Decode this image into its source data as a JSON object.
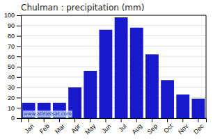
{
  "chart_data": {
    "type": "bar",
    "title": "Chulman : precipitation (mm)",
    "categories": [
      "Jan",
      "Feb",
      "Mar",
      "Apr",
      "May",
      "Jun",
      "Jul",
      "Aug",
      "Sep",
      "Oct",
      "Nov",
      "Dec"
    ],
    "values": [
      15,
      15,
      15,
      30,
      46,
      86,
      98,
      88,
      62,
      37,
      23,
      19
    ],
    "color": "#1818cc",
    "ylim": [
      0,
      100
    ],
    "yticks": [
      0,
      10,
      20,
      30,
      40,
      50,
      60,
      70,
      80,
      90,
      100
    ],
    "grid": true,
    "annotations": [
      "www.allmetsat.com"
    ]
  }
}
